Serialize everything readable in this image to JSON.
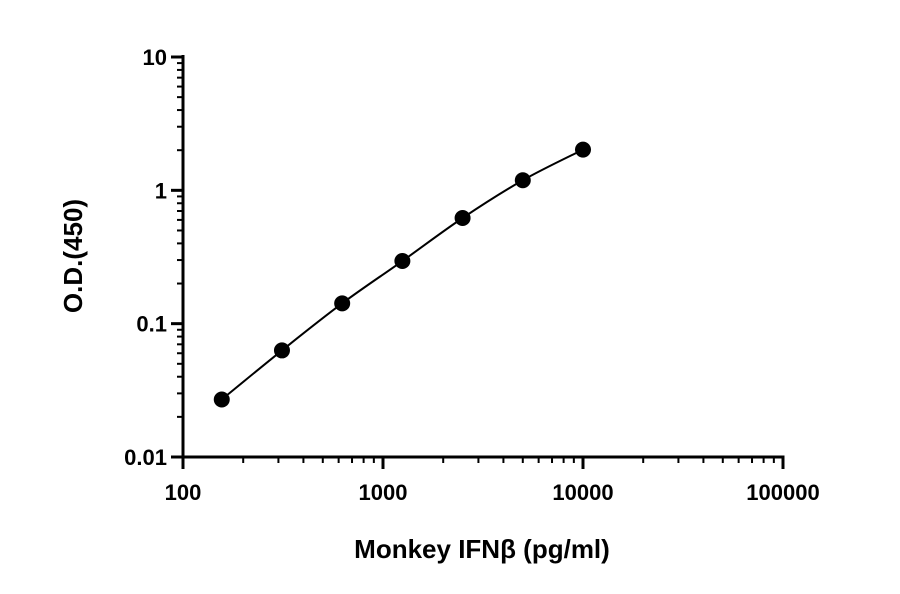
{
  "chart_data": {
    "type": "scatter",
    "xlabel": "Monkey IFNβ (pg/ml)",
    "ylabel": "O.D.(450)",
    "xscale": "log",
    "yscale": "log",
    "xlim": [
      100,
      100000
    ],
    "ylim": [
      0.01,
      10
    ],
    "x_ticks": [
      100,
      1000,
      10000,
      100000
    ],
    "x_tick_labels": [
      "100",
      "1000",
      "10000",
      "100000"
    ],
    "y_ticks": [
      0.01,
      0.1,
      1,
      10
    ],
    "y_tick_labels": [
      "0.01",
      "0.1",
      "1",
      "10"
    ],
    "grid": false,
    "legend": "none",
    "fit_curve": true,
    "series": [
      {
        "x": [
          156.25,
          312.5,
          625,
          1250,
          2500,
          5000,
          10000
        ],
        "y": [
          0.027,
          0.063,
          0.142,
          0.295,
          0.62,
          1.19,
          2.02
        ]
      }
    ],
    "colors": {
      "marker": "#000000",
      "line": "#000000",
      "axis": "#000000"
    }
  }
}
